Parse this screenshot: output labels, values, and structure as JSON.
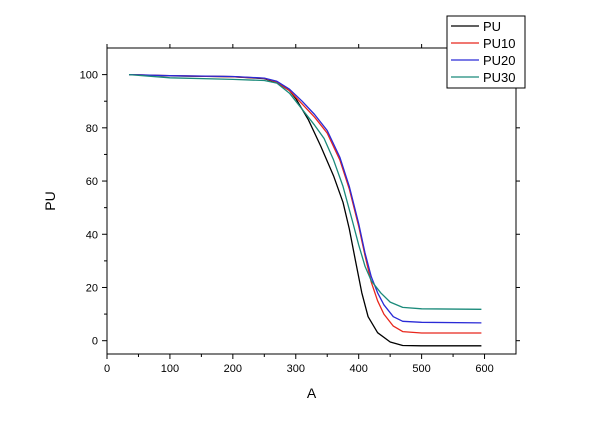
{
  "chart_data": {
    "type": "line",
    "xlabel": "A",
    "ylabel": "PU",
    "xlim": [
      0,
      650
    ],
    "ylim": [
      -5,
      110
    ],
    "xticks": [
      0,
      100,
      200,
      300,
      400,
      500,
      600
    ],
    "yticks": [
      0,
      20,
      40,
      60,
      80,
      100
    ],
    "grid": false,
    "legend_position": "top-right",
    "series": [
      {
        "name": "PU",
        "color": "#000000",
        "points": [
          [
            35,
            100
          ],
          [
            100,
            99.5
          ],
          [
            200,
            99.2
          ],
          [
            250,
            98.5
          ],
          [
            270,
            97
          ],
          [
            290,
            94
          ],
          [
            300,
            91
          ],
          [
            320,
            83
          ],
          [
            340,
            73
          ],
          [
            360,
            62
          ],
          [
            375,
            52
          ],
          [
            385,
            42
          ],
          [
            395,
            30
          ],
          [
            405,
            18
          ],
          [
            415,
            9
          ],
          [
            430,
            3
          ],
          [
            450,
            -0.5
          ],
          [
            470,
            -1.8
          ],
          [
            500,
            -1.9
          ],
          [
            595,
            -1.9
          ]
        ]
      },
      {
        "name": "PU10",
        "color": "#e8261c",
        "points": [
          [
            35,
            100
          ],
          [
            100,
            99.6
          ],
          [
            200,
            99.2
          ],
          [
            250,
            98.6
          ],
          [
            270,
            97.2
          ],
          [
            290,
            94
          ],
          [
            310,
            89
          ],
          [
            330,
            84
          ],
          [
            350,
            78
          ],
          [
            370,
            68
          ],
          [
            385,
            57
          ],
          [
            400,
            43
          ],
          [
            410,
            32
          ],
          [
            420,
            22
          ],
          [
            430,
            15
          ],
          [
            440,
            10
          ],
          [
            455,
            5.5
          ],
          [
            470,
            3.4
          ],
          [
            500,
            2.9
          ],
          [
            595,
            2.9
          ]
        ]
      },
      {
        "name": "PU20",
        "color": "#2a2ad6",
        "points": [
          [
            35,
            100
          ],
          [
            100,
            99.6
          ],
          [
            200,
            99.3
          ],
          [
            250,
            98.7
          ],
          [
            270,
            97.5
          ],
          [
            290,
            94.5
          ],
          [
            310,
            90
          ],
          [
            330,
            85
          ],
          [
            350,
            79
          ],
          [
            370,
            69
          ],
          [
            385,
            58
          ],
          [
            400,
            44
          ],
          [
            410,
            33
          ],
          [
            420,
            24
          ],
          [
            430,
            18
          ],
          [
            440,
            13.5
          ],
          [
            455,
            9
          ],
          [
            470,
            7.3
          ],
          [
            500,
            6.9
          ],
          [
            595,
            6.7
          ]
        ]
      },
      {
        "name": "PU30",
        "color": "#1a8a7a",
        "points": [
          [
            35,
            100
          ],
          [
            100,
            98.8
          ],
          [
            200,
            98.2
          ],
          [
            250,
            97.8
          ],
          [
            270,
            96.8
          ],
          [
            290,
            93
          ],
          [
            310,
            87
          ],
          [
            330,
            81
          ],
          [
            345,
            76
          ],
          [
            360,
            68
          ],
          [
            375,
            58
          ],
          [
            390,
            45
          ],
          [
            400,
            36
          ],
          [
            410,
            28
          ],
          [
            420,
            22.5
          ],
          [
            435,
            18
          ],
          [
            450,
            14.5
          ],
          [
            470,
            12.5
          ],
          [
            500,
            12
          ],
          [
            595,
            11.8
          ]
        ]
      }
    ]
  }
}
